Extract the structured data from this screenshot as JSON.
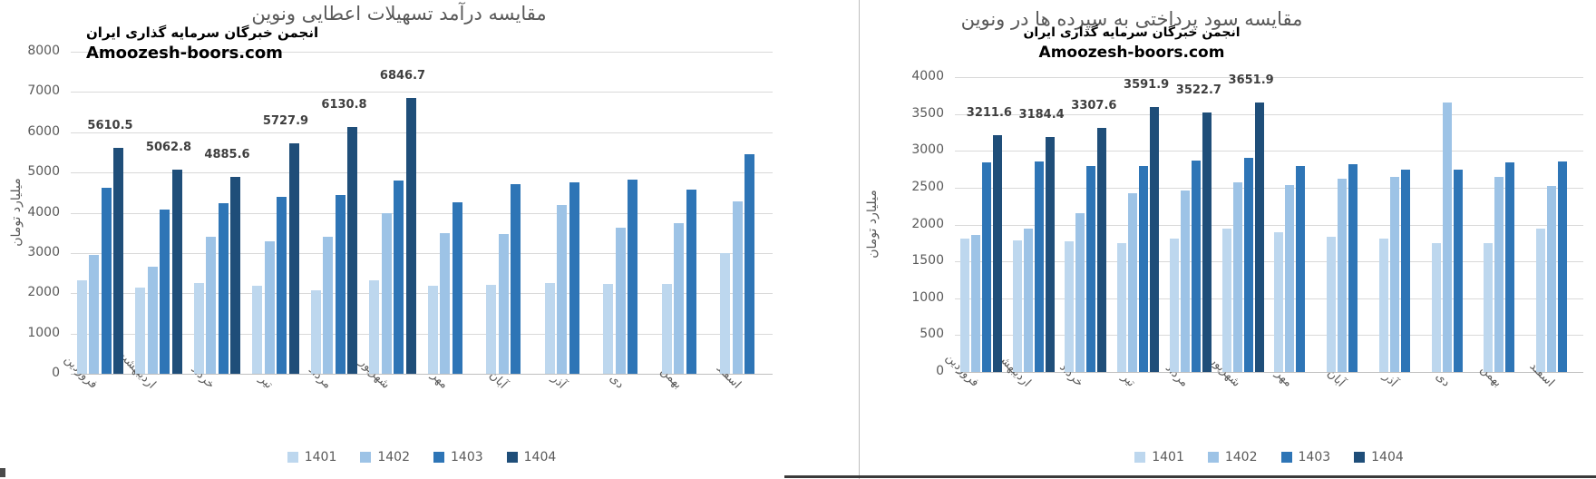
{
  "colors": {
    "series_1401": "#bdd7ee",
    "series_1402": "#9dc3e6",
    "series_1403": "#2e75b6",
    "series_1404": "#1f4e79",
    "gridline": "#d9d9d9",
    "axis_line": "#bfbfbf",
    "tick_text": "#595959",
    "data_label_text": "#3f3f3f"
  },
  "chart_data": [
    {
      "type": "bar",
      "title": "مقایسه درآمد تسهیلات اعطایی  ونوین",
      "watermark": [
        "انجمن خبرگان سرمایه گذاری ایران",
        "Amoozesh-boors.com"
      ],
      "xlabel": "",
      "ylabel": "میلیارد تومان",
      "ylim": [
        0,
        8000
      ],
      "ytick_step": 1000,
      "grid": true,
      "legend_position": "bottom",
      "categories": [
        "فروردین",
        "اردیبهشت",
        "خرداد",
        "تیر",
        "مرداد",
        "شهریور",
        "مهر",
        "آبان",
        "آذر",
        "دی",
        "بهمن",
        "اسفند"
      ],
      "series": [
        {
          "name": "1401",
          "color": "#bdd7ee",
          "values": [
            2330,
            2130,
            2250,
            2180,
            2080,
            2320,
            2180,
            2200,
            2250,
            2220,
            2230,
            3000
          ]
        },
        {
          "name": "1402",
          "color": "#9dc3e6",
          "values": [
            2950,
            2670,
            3400,
            3280,
            3400,
            4000,
            3490,
            3460,
            4200,
            3620,
            3740,
            4290
          ]
        },
        {
          "name": "1403",
          "color": "#2e75b6",
          "values": [
            4620,
            4070,
            4230,
            4400,
            4430,
            4810,
            4270,
            4720,
            4750,
            4830,
            4580,
            5450
          ]
        },
        {
          "name": "1404",
          "color": "#1f4e79",
          "values": [
            5610.5,
            5062.8,
            4885.6,
            5727.9,
            6130.8,
            6846.7,
            null,
            null,
            null,
            null,
            null,
            null
          ],
          "data_labels": true
        }
      ]
    },
    {
      "type": "bar",
      "title": "مقایسه سود پرداختی به سپرده ها در ونوین",
      "watermark": [
        "انجمن خبرگان سرمایه گذاری ایران",
        "Amoozesh-boors.com"
      ],
      "xlabel": "",
      "ylabel": "میلیارد تومان",
      "ylim": [
        0,
        4000
      ],
      "ytick_step": 500,
      "grid": true,
      "legend_position": "bottom",
      "categories": [
        "فروردین",
        "اردیبهشت",
        "خرداد",
        "تیر",
        "مرداد",
        "شهریور",
        "مهر",
        "آبان",
        "آذر",
        "دی",
        "بهمن",
        "اسفند"
      ],
      "series": [
        {
          "name": "1401",
          "color": "#bdd7ee",
          "values": [
            1810,
            1780,
            1770,
            1745,
            1810,
            1940,
            1890,
            1840,
            1815,
            1750,
            1750,
            1950
          ]
        },
        {
          "name": "1402",
          "color": "#9dc3e6",
          "values": [
            1860,
            1950,
            2150,
            2420,
            2460,
            2570,
            2530,
            2620,
            2650,
            3660,
            2650,
            2520
          ]
        },
        {
          "name": "1403",
          "color": "#2e75b6",
          "values": [
            2840,
            2860,
            2800,
            2790,
            2870,
            2910,
            2800,
            2820,
            2740,
            2750,
            2840,
            2860
          ]
        },
        {
          "name": "1404",
          "color": "#1f4e79",
          "values": [
            3211.6,
            3184.4,
            3307.6,
            3591.9,
            3522.7,
            3651.9,
            null,
            null,
            null,
            null,
            null,
            null
          ],
          "data_labels": true
        }
      ]
    }
  ]
}
